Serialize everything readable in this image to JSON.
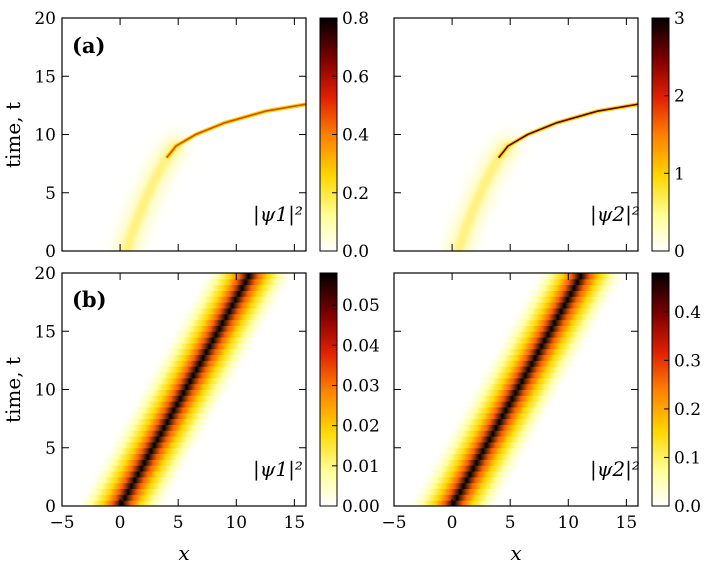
{
  "chart_data": [
    {
      "type": "heatmap",
      "panel_label": "(a)",
      "field_label": "|ψ1|²",
      "ylabel": "time, t",
      "xlabel": "",
      "xlim": [
        -5,
        16
      ],
      "ylim": [
        0,
        20
      ],
      "x_ticks": [
        -5,
        0,
        5,
        10,
        15
      ],
      "y_ticks": [
        0,
        5,
        10,
        15,
        20
      ],
      "colorbar_ticks": [
        "0.0",
        "0.2",
        "0.4",
        "0.6",
        "0.8"
      ],
      "colorbar_range": [
        0,
        0.8
      ],
      "trajectory": [
        {
          "t": 0,
          "x": 0.5
        },
        {
          "t": 2,
          "x": 1.2
        },
        {
          "t": 4,
          "x": 2.0
        },
        {
          "t": 6,
          "x": 2.9
        },
        {
          "t": 8,
          "x": 4.0
        },
        {
          "t": 9,
          "x": 4.8
        },
        {
          "t": 10,
          "x": 6.5
        },
        {
          "t": 11,
          "x": 9.0
        },
        {
          "t": 12,
          "x": 12.5
        },
        {
          "t": 12.6,
          "x": 16
        }
      ]
    },
    {
      "type": "heatmap",
      "panel_label": "",
      "field_label": "|ψ2|²",
      "ylabel": "",
      "xlabel": "",
      "xlim": [
        -5,
        16
      ],
      "ylim": [
        0,
        20
      ],
      "x_ticks": [
        -5,
        0,
        5,
        10,
        15
      ],
      "y_ticks": [
        0,
        5,
        10,
        15,
        20
      ],
      "colorbar_ticks": [
        "0",
        "1",
        "2",
        "3"
      ],
      "colorbar_range": [
        0,
        3
      ],
      "trajectory": [
        {
          "t": 0,
          "x": 0.5
        },
        {
          "t": 2,
          "x": 1.2
        },
        {
          "t": 4,
          "x": 2.0
        },
        {
          "t": 6,
          "x": 2.9
        },
        {
          "t": 8,
          "x": 4.0
        },
        {
          "t": 9,
          "x": 4.8
        },
        {
          "t": 10,
          "x": 6.5
        },
        {
          "t": 11,
          "x": 9.0
        },
        {
          "t": 12,
          "x": 12.5
        },
        {
          "t": 12.6,
          "x": 16
        }
      ]
    },
    {
      "type": "heatmap",
      "panel_label": "(b)",
      "field_label": "|ψ1|²",
      "ylabel": "time, t",
      "xlabel": "x",
      "xlim": [
        -5,
        16
      ],
      "ylim": [
        0,
        20
      ],
      "x_ticks": [
        -5,
        0,
        5,
        10,
        15
      ],
      "y_ticks": [
        0,
        5,
        10,
        15,
        20
      ],
      "colorbar_ticks": [
        "0.00",
        "0.01",
        "0.02",
        "0.03",
        "0.04",
        "0.05"
      ],
      "colorbar_range": [
        0,
        0.058
      ],
      "trajectory": [
        {
          "t": 0,
          "x": 0
        },
        {
          "t": 20,
          "x": 11.2
        }
      ]
    },
    {
      "type": "heatmap",
      "panel_label": "",
      "field_label": "|ψ2|²",
      "ylabel": "",
      "xlabel": "x",
      "xlim": [
        -5,
        16
      ],
      "ylim": [
        0,
        20
      ],
      "x_ticks": [
        -5,
        0,
        5,
        10,
        15
      ],
      "y_ticks": [
        0,
        5,
        10,
        15,
        20
      ],
      "colorbar_ticks": [
        "0.0",
        "0.1",
        "0.2",
        "0.3",
        "0.4"
      ],
      "colorbar_range": [
        0,
        0.48
      ],
      "trajectory": [
        {
          "t": 0,
          "x": 0
        },
        {
          "t": 20,
          "x": 11.2
        }
      ]
    }
  ],
  "colors": {
    "scale": [
      "#ffffff",
      "#ffff99",
      "#ffd700",
      "#ff7f00",
      "#e02000",
      "#800000",
      "#000000"
    ]
  }
}
